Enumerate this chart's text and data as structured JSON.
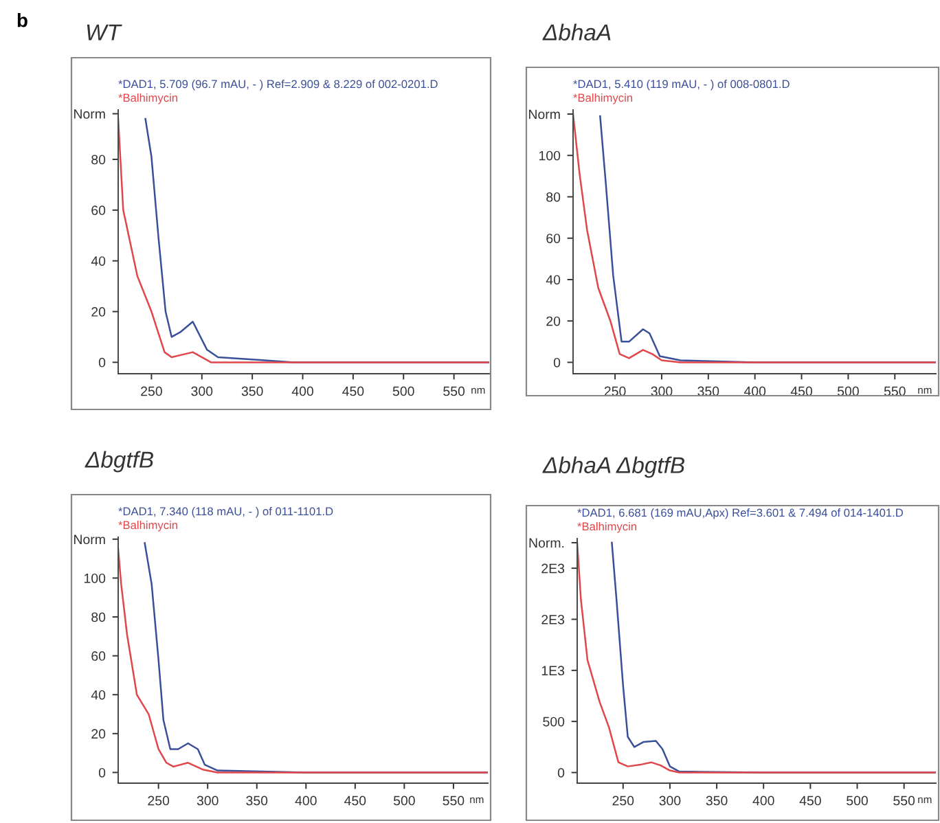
{
  "chart_data": [
    {
      "type": "line",
      "title": "WT",
      "xlabel": "nm",
      "annotations": [
        "b"
      ],
      "legend": "top left",
      "grid": false,
      "xlim": [
        217,
        585
      ],
      "xticks": [
        250,
        300,
        350,
        400,
        450,
        500,
        550
      ],
      "ylim": [
        -4.5,
        99.5
      ],
      "yticks": [
        0,
        20,
        40,
        60,
        80,
        {
          "value": 98,
          "label": "Norm"
        }
      ],
      "series": [
        {
          "name": "*DAD1, 5.709 (96.7 mAU, - ) Ref=2.909 & 8.229 of 002-0201.D",
          "color": "#3a4f9a",
          "x": [
            244,
            250,
            257,
            264,
            270,
            279,
            291,
            305,
            316,
            355,
            391,
            585
          ],
          "values": [
            96,
            81,
            49,
            20,
            10,
            12,
            16,
            5,
            2,
            1,
            0,
            0
          ]
        },
        {
          "name": "*Balhimycin",
          "color": "#e0464a",
          "x": [
            217,
            222,
            236,
            250,
            263,
            270,
            291,
            309,
            585
          ],
          "values": [
            96,
            60,
            34,
            20,
            4,
            2,
            4,
            0,
            0
          ]
        }
      ]
    },
    {
      "type": "line",
      "title": "ΔbhaA",
      "xlabel": "nm",
      "legend": "top left",
      "grid": false,
      "xlim": [
        205,
        594
      ],
      "xticks": [
        250,
        300,
        350,
        400,
        450,
        500,
        550
      ],
      "ylim": [
        -5.5,
        122
      ],
      "yticks": [
        0,
        20,
        40,
        60,
        80,
        100,
        {
          "value": 120,
          "label": "Norm"
        }
      ],
      "series": [
        {
          "name": "*DAD1, 5.410 (119 mAU, - ) of 008-0801.D",
          "color": "#3a4f9a",
          "x": [
            234,
            240,
            248,
            257,
            265,
            280,
            287,
            298,
            320,
            400,
            594
          ],
          "values": [
            119,
            87,
            42,
            10,
            10,
            16,
            14,
            3,
            1,
            0,
            0
          ]
        },
        {
          "name": "*Balhimycin",
          "color": "#e0464a",
          "x": [
            205,
            212,
            220,
            232,
            245,
            255,
            265,
            280,
            290,
            300,
            320,
            594
          ],
          "values": [
            120,
            91,
            64,
            36,
            20,
            4,
            2,
            6,
            4,
            1,
            0,
            0
          ]
        }
      ]
    },
    {
      "type": "line",
      "title": "ΔbgtfB",
      "xlabel": "nm",
      "legend": "top left",
      "grid": false,
      "xlim": [
        209,
        585
      ],
      "xticks": [
        250,
        300,
        350,
        400,
        450,
        500,
        550
      ],
      "ylim": [
        -5.5,
        121
      ],
      "yticks": [
        0,
        20,
        40,
        60,
        80,
        100,
        {
          "value": 120,
          "label": "Norm"
        }
      ],
      "series": [
        {
          "name": "*DAD1, 7.340 (118 mAU, - ) of 011-1101.D",
          "color": "#3a4f9a",
          "x": [
            236,
            243,
            250,
            255,
            262,
            270,
            280,
            290,
            297,
            310,
            400,
            585
          ],
          "values": [
            118,
            97,
            58,
            27,
            12,
            12,
            15,
            12,
            4,
            1,
            0,
            0
          ]
        },
        {
          "name": "*Balhimycin",
          "color": "#e0464a",
          "x": [
            209,
            212,
            218,
            228,
            240,
            250,
            258,
            265,
            280,
            295,
            310,
            585
          ],
          "values": [
            115,
            97,
            71,
            40,
            30,
            12,
            5,
            3,
            5,
            1.5,
            0,
            0
          ]
        }
      ]
    },
    {
      "type": "line",
      "title": "ΔbhaA ΔbgtfB",
      "xlabel": "nm",
      "legend": "top left",
      "grid": false,
      "xlim": [
        201,
        584
      ],
      "xticks": [
        250,
        300,
        350,
        400,
        450,
        500,
        550
      ],
      "ylim": [
        -104,
        2290
      ],
      "yticks": [
        0,
        500,
        {
          "value": 1000,
          "label": "1E3"
        },
        {
          "value": 1500,
          "label": "2E3"
        },
        {
          "value": 2000,
          "label": "2E3"
        },
        {
          "value": 2250,
          "label": "Norm."
        }
      ],
      "series": [
        {
          "name": "*DAD1, 6.681 (169 mAU,Apx) Ref=3.601 & 7.494 of 014-1401.D",
          "color": "#3a4f9a",
          "x": [
            238,
            243,
            250,
            255,
            262,
            272,
            285,
            292,
            300,
            310,
            400,
            584
          ],
          "values": [
            2250,
            1690,
            850,
            350,
            250,
            300,
            310,
            230,
            60,
            10,
            0,
            0
          ]
        },
        {
          "name": "*Balhimycin",
          "color": "#e0464a",
          "x": [
            201,
            205,
            212,
            225,
            235,
            245,
            255,
            270,
            280,
            290,
            300,
            310,
            584
          ],
          "values": [
            2250,
            1690,
            1100,
            690,
            440,
            100,
            60,
            80,
            100,
            70,
            20,
            0,
            0
          ]
        }
      ]
    }
  ]
}
